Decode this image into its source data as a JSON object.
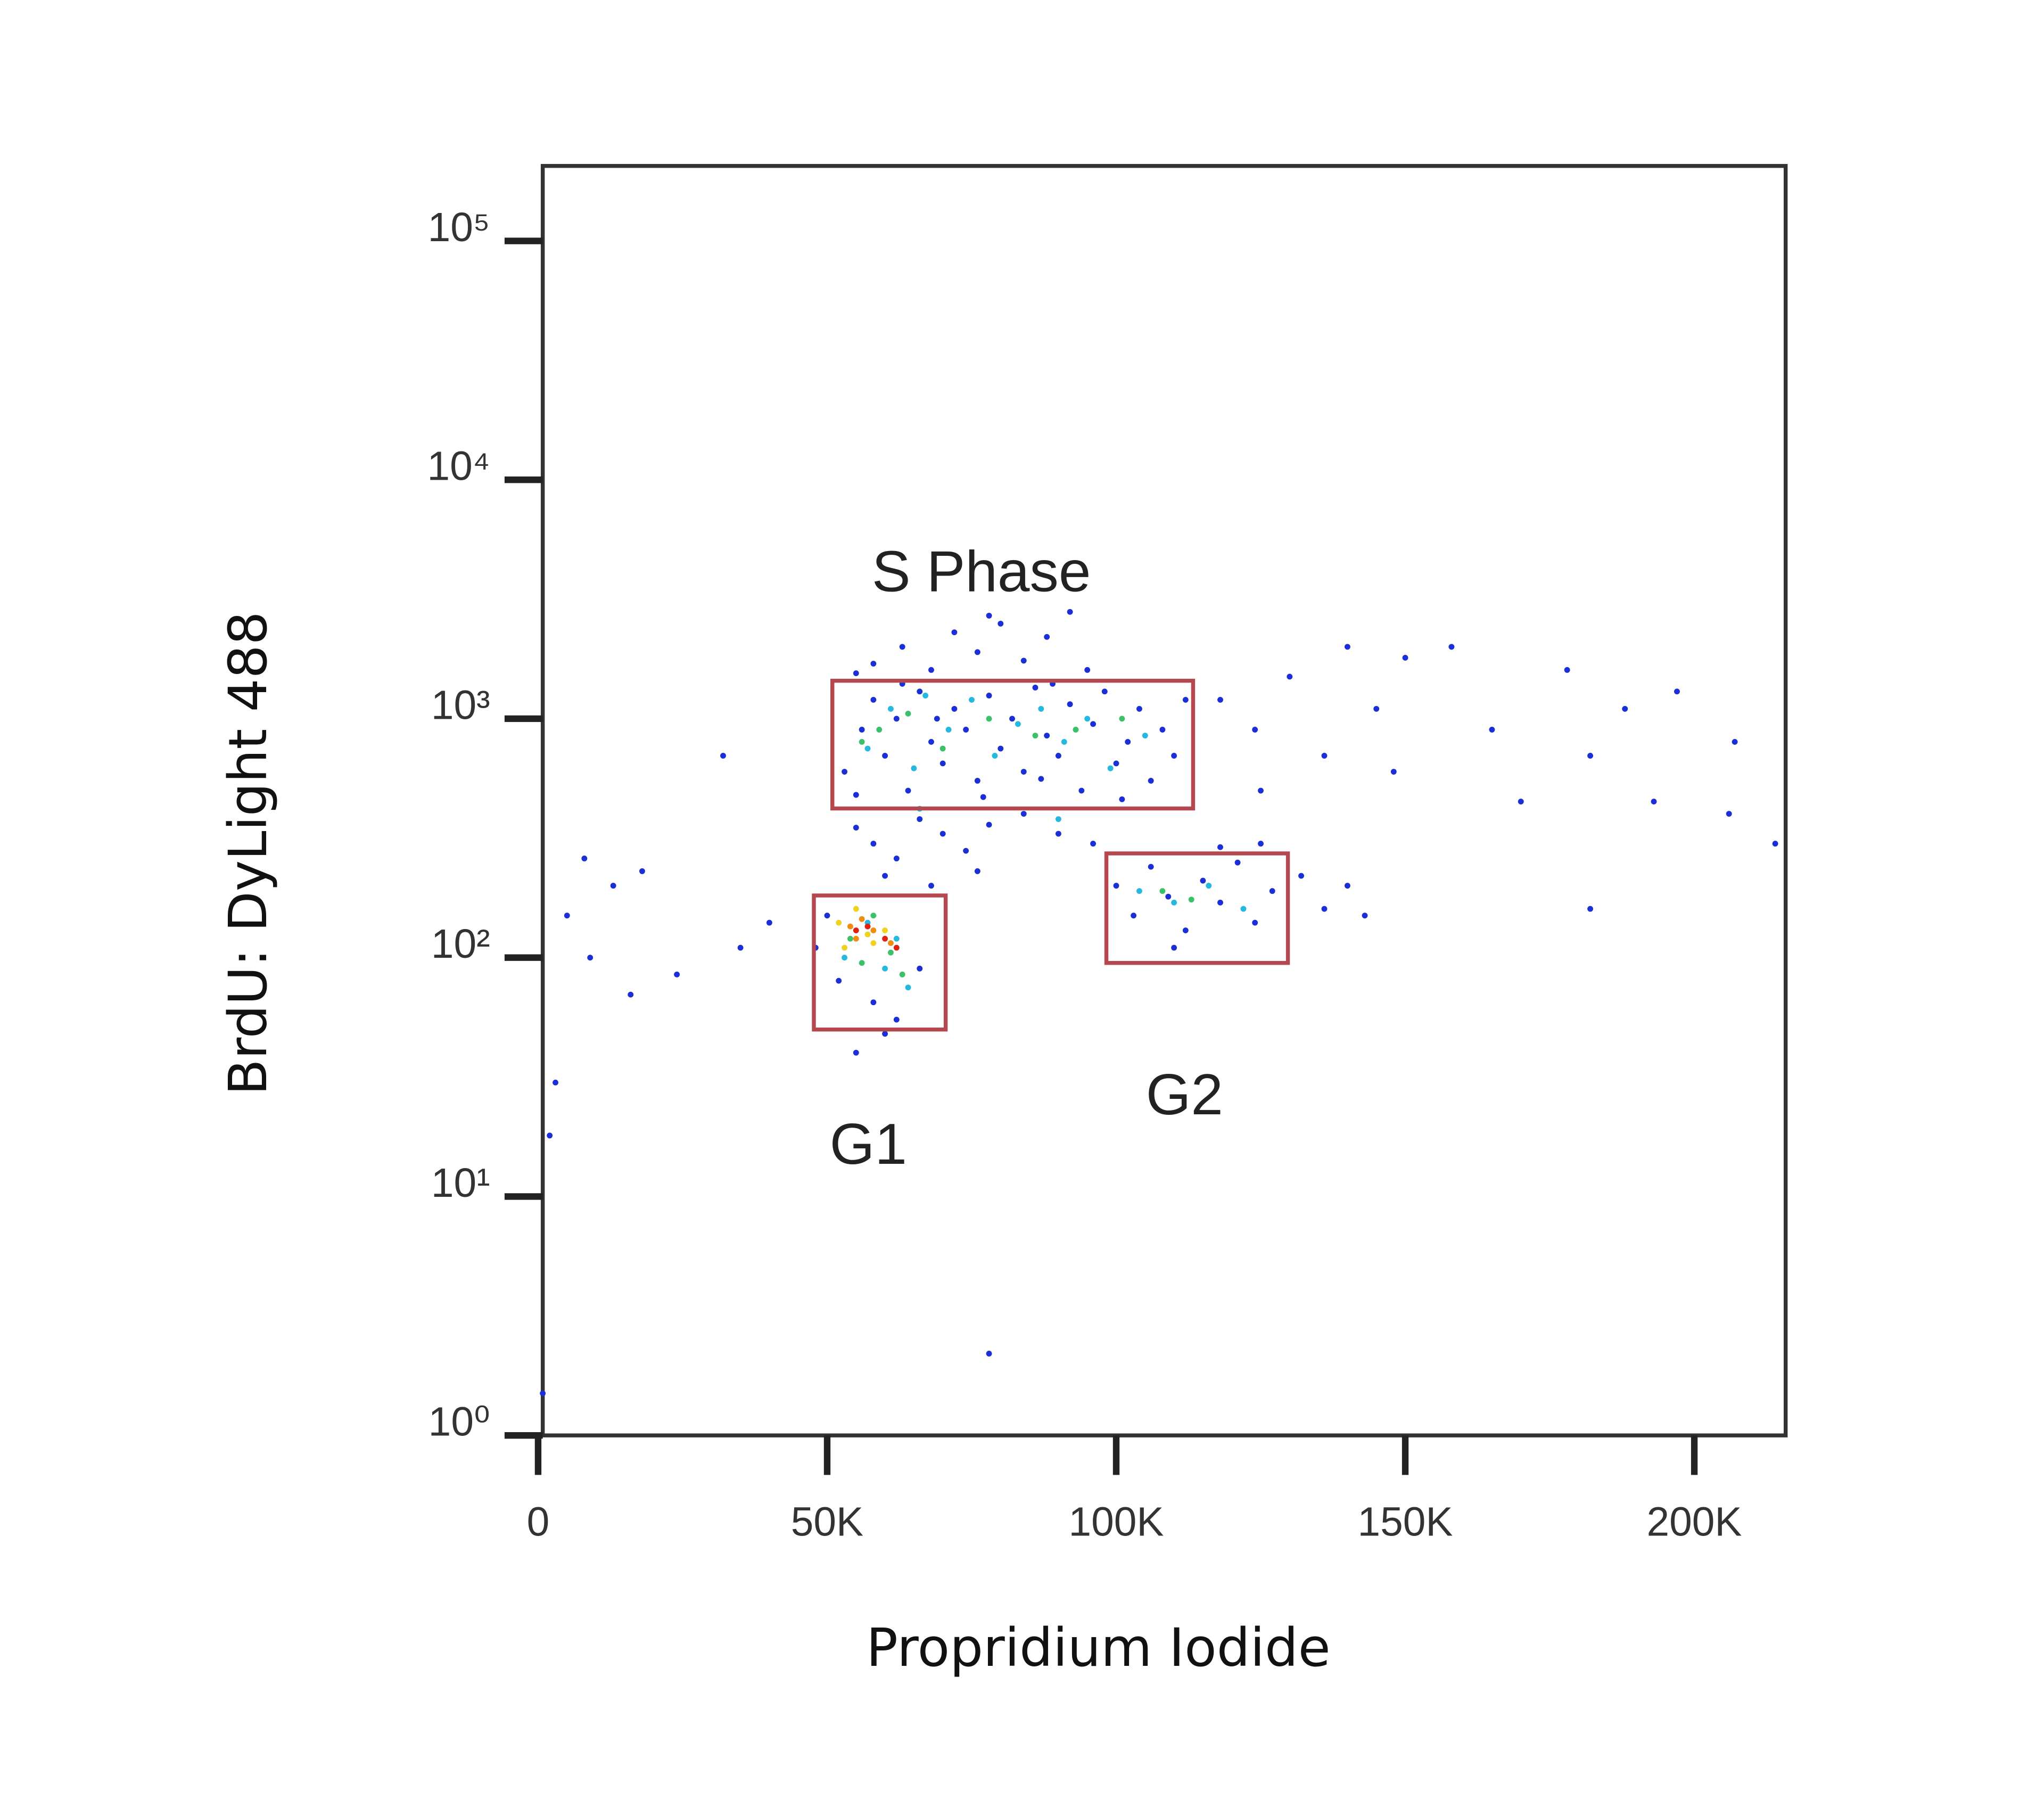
{
  "chart_data": {
    "type": "scatter",
    "x_label": "Propridium Iodide",
    "y_label": "BrdU: DyLight 488",
    "xlim": [
      800,
      215800
    ],
    "ylim": [
      1,
      206000
    ],
    "log_y": true,
    "grid": false,
    "xticks": [
      0,
      {
        "value": 50000,
        "label": "50K"
      },
      {
        "value": 100000,
        "label": "100K"
      },
      {
        "value": 150000,
        "label": "150K"
      },
      {
        "value": 200000,
        "label": "200K"
      }
    ],
    "yticks": [
      {
        "value": 1,
        "label": "10⁰"
      },
      {
        "value": 10,
        "label": "10¹"
      },
      {
        "value": 100,
        "label": "10²"
      },
      {
        "value": 1000,
        "label": "10³"
      },
      {
        "value": 10000,
        "label": "10⁴"
      },
      {
        "value": 100000,
        "label": "10⁵"
      }
    ],
    "gate_color": "#b5474f",
    "gates": [
      {
        "label": "S Phase",
        "x": [
          50900,
          113300
        ],
        "y": [
          421,
          1442
        ]
      },
      {
        "label": "G1",
        "x": [
          47700,
          70500
        ],
        "y": [
          50,
          182
        ]
      },
      {
        "label": "G2",
        "x": [
          98300,
          129700
        ],
        "y": [
          95,
          273
        ]
      }
    ],
    "series": [
      {
        "color": "#1a2fd6",
        "x": [
          53000,
          56000,
          58000,
          60000,
          62000,
          64000,
          66000,
          68000,
          70000,
          72000,
          74000,
          76000,
          78000,
          80000,
          82000,
          84000,
          86000,
          88000,
          90000,
          92000,
          94000,
          96000,
          98000,
          100000,
          102000,
          104000,
          106000,
          108000,
          110000,
          112000,
          55000,
          63000,
          77000,
          89000,
          101000,
          69000,
          87000,
          58000,
          63000,
          68000,
          72000,
          76000,
          80000,
          84000,
          88000,
          92000,
          78000,
          95000,
          55000,
          55000,
          58000,
          62000,
          66000,
          70000,
          74000,
          78000,
          84000,
          90000,
          96000,
          60000,
          68000,
          76000,
          100000,
          103000,
          106000,
          109000,
          112000,
          115000,
          118000,
          121000,
          124000,
          127000,
          132000,
          136000,
          140000,
          110000,
          118000,
          125000,
          143000,
          118000,
          124000,
          130000,
          136000,
          140000,
          145000,
          150000,
          158000,
          165000,
          170000,
          178000,
          182000,
          188000,
          193000,
          197000,
          207000,
          206000,
          214000,
          182000,
          125000,
          148000,
          50000,
          52000,
          58000,
          62000,
          66000,
          48000,
          55000,
          60000,
          5000,
          9000,
          13000,
          16000,
          24000,
          32000,
          35000,
          40000,
          3000,
          8000,
          18000,
          78000,
          800,
          2000
        ],
        "values": [
          600,
          900,
          1200,
          700,
          1000,
          500,
          1300,
          800,
          650,
          1100,
          900,
          550,
          1250,
          750,
          1000,
          600,
          1350,
          850,
          700,
          1150,
          500,
          950,
          1300,
          650,
          800,
          1100,
          550,
          900,
          700,
          1200,
          480,
          1400,
          470,
          1400,
          460,
          1000,
          560,
          1700,
          2000,
          1600,
          2300,
          1900,
          2500,
          1750,
          2200,
          2800,
          2700,
          1600,
          1550,
          350,
          300,
          260,
          380,
          330,
          280,
          360,
          400,
          330,
          300,
          220,
          200,
          230,
          200,
          150,
          240,
          180,
          130,
          210,
          170,
          250,
          140,
          190,
          220,
          160,
          200,
          110,
          290,
          300,
          150,
          1200,
          900,
          1500,
          700,
          2000,
          1100,
          1800,
          2000,
          900,
          450,
          1600,
          700,
          1100,
          450,
          1300,
          800,
          400,
          300,
          160,
          500,
          600,
          150,
          80,
          65,
          55,
          90,
          110,
          40,
          48,
          150,
          100,
          200,
          70,
          85,
          700,
          110,
          140,
          30,
          260,
          230,
          2.2,
          1.5,
          18
        ]
      },
      {
        "color": "#27b8e0",
        "x": [
          57000,
          61000,
          65000,
          71000,
          75000,
          79000,
          83000,
          87000,
          91000,
          95000,
          99000,
          105000,
          67000,
          104000,
          110000,
          116000,
          122000,
          53000,
          57000,
          60000,
          64000,
          62000,
          66000,
          90000
        ],
        "values": [
          750,
          1100,
          620,
          900,
          1200,
          700,
          950,
          1100,
          800,
          1000,
          620,
          850,
          1250,
          190,
          170,
          200,
          160,
          100,
          140,
          90,
          75,
          120,
          420,
          380
        ]
      },
      {
        "color": "#3cc06a",
        "x": [
          59000,
          64000,
          70000,
          78000,
          86000,
          93000,
          101000,
          56000,
          108000,
          113000,
          54000,
          58000,
          61000,
          63000,
          56000
        ],
        "values": [
          900,
          1050,
          750,
          1000,
          850,
          900,
          1000,
          800,
          190,
          175,
          120,
          150,
          105,
          85,
          95
        ]
      },
      {
        "color": "#f0d020",
        "x": [
          52000,
          55000,
          57000,
          60000,
          53000,
          58000
        ],
        "values": [
          140,
          160,
          125,
          130,
          110,
          115
        ]
      },
      {
        "color": "#f08c10",
        "x": [
          54000,
          56000,
          58000,
          61000,
          55000
        ],
        "values": [
          135,
          145,
          130,
          115,
          120
        ]
      },
      {
        "color": "#e02010",
        "x": [
          55000,
          57000,
          60000,
          62000
        ],
        "values": [
          130,
          135,
          120,
          110
        ]
      }
    ]
  }
}
